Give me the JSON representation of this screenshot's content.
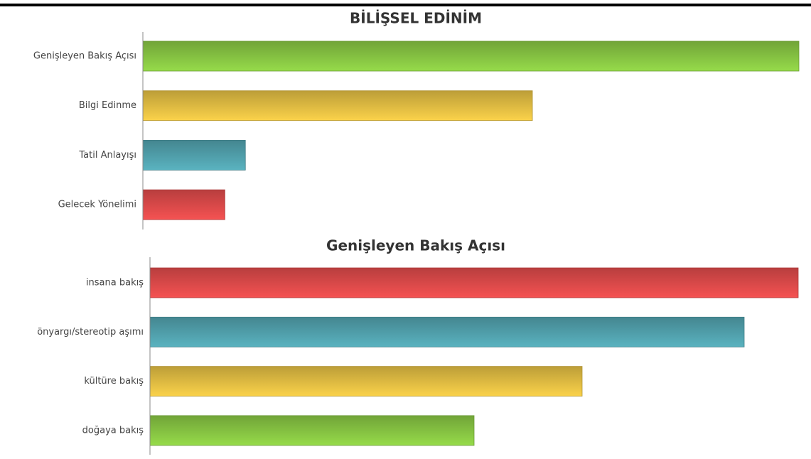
{
  "chart_data": [
    {
      "type": "bar",
      "orientation": "horizontal",
      "title": "BİLİŞSEL EDİNİM",
      "categories": [
        "Genişleyen Bakış Açısı",
        "Bilgi Edinme",
        "Tatil Anlayışı",
        "Gelecek Yönelimi"
      ],
      "values": [
        32,
        19,
        5,
        4
      ],
      "colors": [
        "#96db4a",
        "#fbd24a",
        "#5ab3c0",
        "#f55252"
      ],
      "xlim": [
        0,
        32
      ]
    },
    {
      "type": "bar",
      "orientation": "horizontal",
      "title": "Genişleyen Bakış Açısı",
      "categories": [
        "insana bakış",
        "önyargı/stereotip aşımı",
        "kültüre bakış",
        "doğaya bakış"
      ],
      "values": [
        12,
        11,
        8,
        6
      ],
      "colors": [
        "#f55252",
        "#5ab3c0",
        "#fbd24a",
        "#96db4a"
      ],
      "xlim": [
        0,
        12
      ]
    }
  ]
}
